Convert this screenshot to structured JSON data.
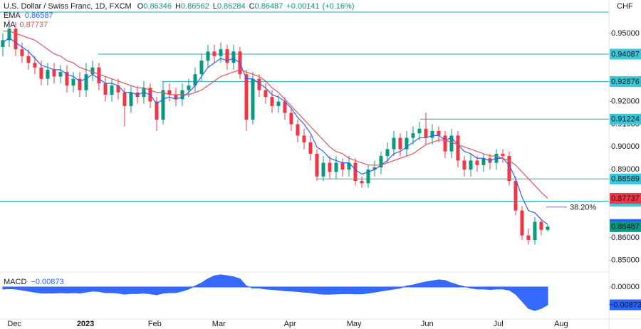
{
  "chart_data": {
    "type": "candlestick",
    "title": "U.S. Dollar / Swiss Franc, 1D, FXCM",
    "quote": [
      {
        "key": "O",
        "value": 0.86346
      },
      {
        "key": "H",
        "value": 0.86562
      },
      {
        "key": "L",
        "value": 0.86284
      },
      {
        "key": "C",
        "value": 0.86487
      }
    ],
    "change": {
      "value": 0.00141,
      "label": "+0.00141"
    },
    "change_pct": {
      "value": 0.16,
      "label": "(+0.16%)"
    },
    "currency": "CHF",
    "x": [
      0,
      1,
      2,
      3,
      4,
      5,
      6,
      7,
      8,
      9,
      10,
      11,
      12,
      13,
      14,
      15,
      16,
      17,
      18,
      19,
      20,
      21,
      22,
      23,
      24,
      25,
      26,
      27,
      28,
      29,
      30,
      31,
      32,
      33,
      34,
      35,
      36,
      37,
      38,
      39,
      40,
      41,
      42,
      43,
      44,
      45,
      46,
      47,
      48,
      49,
      50,
      51,
      52,
      53,
      54,
      55,
      56,
      57,
      58,
      59,
      60,
      61,
      62,
      63,
      64,
      65,
      66,
      67,
      68,
      69,
      70,
      71,
      72,
      73,
      74,
      75,
      76,
      77,
      78,
      79,
      80,
      81,
      82,
      83,
      84,
      85
    ],
    "xlim": [
      -0.44,
      94.56
    ],
    "xticks": [
      {
        "value": 1.8,
        "label": "Dec"
      },
      {
        "value": 12.9,
        "label": "2023"
      },
      {
        "value": 23.7,
        "label": "Feb"
      },
      {
        "value": 33.7,
        "label": "Mar"
      },
      {
        "value": 44.8,
        "label": "Apr"
      },
      {
        "value": 54.8,
        "label": "May"
      },
      {
        "value": 66.2,
        "label": "Jun"
      },
      {
        "value": 77.3,
        "label": "Jul"
      },
      {
        "value": 87.1,
        "label": "Aug"
      }
    ],
    "ylim": [
      0.8449,
      0.9647
    ],
    "yticks": [
      {
        "value": 0.95,
        "label": "0.95000"
      },
      {
        "value": 0.92,
        "label": "0.92000"
      },
      {
        "value": 0.91,
        "label": "0.91000"
      },
      {
        "value": 0.9,
        "label": "0.90000"
      },
      {
        "value": 0.89,
        "label": "0.89000"
      },
      {
        "value": 0.86,
        "label": "0.86000"
      },
      {
        "value": 0.85,
        "label": "0.85000"
      }
    ],
    "grid": false,
    "candles": {
      "up_color": "#089981",
      "down_color": "#f23645",
      "open": [
        0.944,
        0.947,
        0.952,
        0.943,
        0.94,
        0.937,
        0.935,
        0.93,
        0.934,
        0.931,
        0.933,
        0.927,
        0.93,
        0.925,
        0.932,
        0.935,
        0.928,
        0.923,
        0.927,
        0.924,
        0.918,
        0.924,
        0.922,
        0.926,
        0.92,
        0.912,
        0.925,
        0.923,
        0.921,
        0.925,
        0.927,
        0.932,
        0.938,
        0.942,
        0.94,
        0.943,
        0.937,
        0.942,
        0.932,
        0.912,
        0.93,
        0.925,
        0.922,
        0.918,
        0.92,
        0.915,
        0.91,
        0.905,
        0.902,
        0.897,
        0.887,
        0.893,
        0.889,
        0.893,
        0.89,
        0.893,
        0.885,
        0.884,
        0.89,
        0.891,
        0.896,
        0.899,
        0.904,
        0.899,
        0.904,
        0.906,
        0.908,
        0.904,
        0.907,
        0.905,
        0.898,
        0.905,
        0.894,
        0.89,
        0.894,
        0.892,
        0.895,
        0.893,
        0.897,
        0.896,
        0.885,
        0.872,
        0.861,
        0.859,
        0.867,
        0.86346
      ],
      "high": [
        0.95,
        0.956,
        0.955,
        0.946,
        0.943,
        0.94,
        0.938,
        0.937,
        0.937,
        0.936,
        0.936,
        0.933,
        0.933,
        0.937,
        0.938,
        0.937,
        0.931,
        0.93,
        0.93,
        0.926,
        0.927,
        0.927,
        0.929,
        0.928,
        0.922,
        0.929,
        0.928,
        0.926,
        0.928,
        0.93,
        0.935,
        0.941,
        0.945,
        0.945,
        0.946,
        0.945,
        0.945,
        0.944,
        0.934,
        0.933,
        0.932,
        0.928,
        0.925,
        0.923,
        0.922,
        0.917,
        0.912,
        0.908,
        0.905,
        0.899,
        0.896,
        0.896,
        0.896,
        0.895,
        0.896,
        0.895,
        0.887,
        0.892,
        0.894,
        0.898,
        0.902,
        0.907,
        0.906,
        0.907,
        0.909,
        0.911,
        0.915,
        0.91,
        0.909,
        0.907,
        0.908,
        0.907,
        0.896,
        0.897,
        0.896,
        0.897,
        0.897,
        0.899,
        0.899,
        0.898,
        0.887,
        0.874,
        0.864,
        0.869,
        0.868,
        0.86562
      ],
      "low": [
        0.94,
        0.944,
        0.94,
        0.937,
        0.934,
        0.932,
        0.927,
        0.927,
        0.928,
        0.928,
        0.924,
        0.924,
        0.922,
        0.922,
        0.929,
        0.925,
        0.92,
        0.92,
        0.921,
        0.909,
        0.915,
        0.919,
        0.919,
        0.917,
        0.907,
        0.91,
        0.92,
        0.918,
        0.918,
        0.922,
        0.924,
        0.929,
        0.935,
        0.937,
        0.937,
        0.934,
        0.934,
        0.93,
        0.907,
        0.91,
        0.922,
        0.919,
        0.915,
        0.915,
        0.912,
        0.907,
        0.902,
        0.899,
        0.894,
        0.885,
        0.885,
        0.886,
        0.886,
        0.887,
        0.887,
        0.883,
        0.882,
        0.882,
        0.887,
        0.888,
        0.893,
        0.896,
        0.896,
        0.896,
        0.901,
        0.903,
        0.901,
        0.901,
        0.902,
        0.895,
        0.895,
        0.891,
        0.887,
        0.887,
        0.889,
        0.889,
        0.89,
        0.89,
        0.893,
        0.883,
        0.87,
        0.859,
        0.857,
        0.857,
        0.861,
        0.86284
      ],
      "close": [
        0.947,
        0.952,
        0.943,
        0.94,
        0.937,
        0.935,
        0.93,
        0.934,
        0.931,
        0.933,
        0.927,
        0.93,
        0.925,
        0.932,
        0.935,
        0.928,
        0.923,
        0.927,
        0.924,
        0.918,
        0.924,
        0.922,
        0.926,
        0.92,
        0.912,
        0.925,
        0.923,
        0.921,
        0.925,
        0.927,
        0.932,
        0.938,
        0.942,
        0.94,
        0.943,
        0.937,
        0.942,
        0.932,
        0.912,
        0.93,
        0.925,
        0.922,
        0.918,
        0.92,
        0.915,
        0.91,
        0.905,
        0.902,
        0.897,
        0.887,
        0.893,
        0.889,
        0.893,
        0.89,
        0.893,
        0.885,
        0.884,
        0.89,
        0.891,
        0.896,
        0.899,
        0.904,
        0.899,
        0.904,
        0.906,
        0.908,
        0.904,
        0.907,
        0.905,
        0.898,
        0.905,
        0.894,
        0.89,
        0.894,
        0.892,
        0.895,
        0.893,
        0.897,
        0.896,
        0.885,
        0.872,
        0.861,
        0.859,
        0.867,
        0.86346,
        0.86487
      ]
    },
    "series": [
      {
        "name": "EMA",
        "color": "#2962ff",
        "values": [
          0.946,
          0.948,
          0.946,
          0.944,
          0.942,
          0.939,
          0.936,
          0.935,
          0.934,
          0.934,
          0.932,
          0.931,
          0.929,
          0.93,
          0.932,
          0.93,
          0.928,
          0.928,
          0.927,
          0.924,
          0.924,
          0.923,
          0.924,
          0.923,
          0.919,
          0.921,
          0.922,
          0.921,
          0.922,
          0.924,
          0.927,
          0.931,
          0.935,
          0.937,
          0.939,
          0.938,
          0.939,
          0.937,
          0.93,
          0.93,
          0.928,
          0.926,
          0.923,
          0.922,
          0.92,
          0.917,
          0.913,
          0.91,
          0.906,
          0.9,
          0.898,
          0.895,
          0.894,
          0.893,
          0.893,
          0.89,
          0.888,
          0.889,
          0.89,
          0.892,
          0.894,
          0.897,
          0.898,
          0.9,
          0.902,
          0.904,
          0.904,
          0.905,
          0.905,
          0.903,
          0.904,
          0.901,
          0.898,
          0.897,
          0.895,
          0.895,
          0.894,
          0.895,
          0.895,
          0.892,
          0.886,
          0.878,
          0.872,
          0.871,
          0.868,
          0.86587
        ]
      },
      {
        "name": "MA",
        "color": "#e0535b",
        "values": [
          0.951,
          0.951,
          0.95,
          0.949,
          0.948,
          0.947,
          0.945,
          0.943,
          0.941,
          0.94,
          0.938,
          0.937,
          0.935,
          0.934,
          0.933,
          0.932,
          0.931,
          0.93,
          0.929,
          0.928,
          0.927,
          0.926,
          0.926,
          0.925,
          0.924,
          0.924,
          0.923,
          0.923,
          0.923,
          0.923,
          0.924,
          0.925,
          0.927,
          0.929,
          0.931,
          0.932,
          0.933,
          0.934,
          0.933,
          0.932,
          0.931,
          0.929,
          0.926,
          0.924,
          0.921,
          0.918,
          0.915,
          0.912,
          0.909,
          0.906,
          0.903,
          0.9,
          0.898,
          0.897,
          0.895,
          0.894,
          0.893,
          0.892,
          0.892,
          0.892,
          0.893,
          0.894,
          0.895,
          0.896,
          0.897,
          0.899,
          0.901,
          0.902,
          0.903,
          0.903,
          0.902,
          0.901,
          0.9,
          0.899,
          0.898,
          0.897,
          0.896,
          0.896,
          0.895,
          0.894,
          0.892,
          0.889,
          0.886,
          0.883,
          0.88,
          0.87737
        ]
      }
    ],
    "levels": [
      0.94087,
      0.92876,
      0.91224,
      0.88589,
      0.87611
    ],
    "level_color": "#22a9b8",
    "fib": {
      "level": {
        "value": 38.2,
        "label": "38.20%"
      },
      "price": 0.8735,
      "color": "#7e57c2"
    },
    "macd": {
      "name": "MACD",
      "color": "#2962ff",
      "value_label": "−0.00873",
      "ylim": [
        -0.0157,
        0.007
      ],
      "yticks": [
        {
          "value": 0,
          "label": "0.00000"
        }
      ],
      "values": [
        -0.001,
        -0.0008,
        -0.001,
        -0.0015,
        -0.002,
        -0.0025,
        -0.003,
        -0.003,
        -0.003,
        -0.0028,
        -0.003,
        -0.0028,
        -0.003,
        -0.0025,
        -0.002,
        -0.0022,
        -0.0028,
        -0.0028,
        -0.003,
        -0.0035,
        -0.0032,
        -0.0032,
        -0.003,
        -0.0033,
        -0.0038,
        -0.003,
        -0.0028,
        -0.0028,
        -0.002,
        -0.001,
        0.0005,
        0.002,
        0.004,
        0.0055,
        0.006,
        0.0055,
        0.005,
        0.004,
        0.0005,
        -0.0005,
        -0.0005,
        -0.001,
        -0.0012,
        -0.0015,
        -0.0018,
        -0.002,
        -0.0022,
        -0.0025,
        -0.0028,
        -0.0032,
        -0.0035,
        -0.0035,
        -0.0034,
        -0.0033,
        -0.0032,
        -0.0034,
        -0.0034,
        -0.003,
        -0.0025,
        -0.002,
        -0.0015,
        -0.001,
        -0.0005,
        0.0005,
        0.001,
        0.0018,
        0.0025,
        0.003,
        0.0035,
        0.0032,
        0.002,
        0.001,
        0.0002,
        -0.0005,
        -0.001,
        -0.001,
        -0.0012,
        -0.001,
        -0.001,
        -0.0015,
        -0.0035,
        -0.007,
        -0.0105,
        -0.0115,
        -0.0105,
        -0.00873
      ]
    }
  }
}
